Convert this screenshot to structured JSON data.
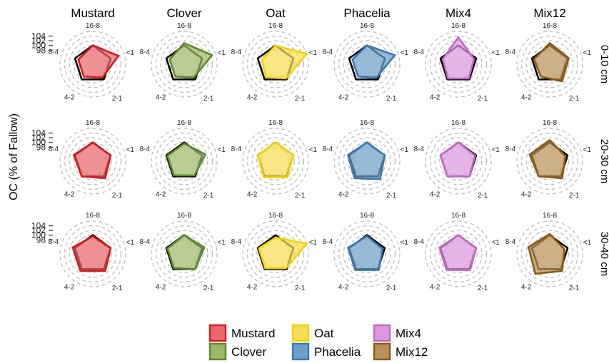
{
  "chart_data": {
    "type": "radar",
    "ylabel": "OC (% of Fallow)",
    "r_ticks": [
      98,
      100,
      102,
      104
    ],
    "r_range": [
      92,
      106
    ],
    "axes": [
      "<1",
      "2-1",
      "4-2",
      "8-4",
      "16-8"
    ],
    "treatments": [
      "Mustard",
      "Clover",
      "Oat",
      "Phacelia",
      "Mix4",
      "Mix12"
    ],
    "depths": [
      "0-10 cm",
      "20-30 cm",
      "30-40 cm"
    ],
    "reference": {
      "name": "Fallow",
      "values": [
        100,
        100,
        100,
        100,
        100
      ],
      "color": "#000000"
    },
    "colors": {
      "Mustard": {
        "fill": "#e8686e",
        "stroke": "#d7191c"
      },
      "Clover": {
        "fill": "#9cb86a",
        "stroke": "#5a8a2a"
      },
      "Oat": {
        "fill": "#f7dc55",
        "stroke": "#f5d300"
      },
      "Phacelia": {
        "fill": "#6f9fc8",
        "stroke": "#3b78b0"
      },
      "Mix4": {
        "fill": "#dc98de",
        "stroke": "#c267c4"
      },
      "Mix12": {
        "fill": "#b8925a",
        "stroke": "#8a5a14"
      }
    },
    "series": [
      {
        "treatment": "Mustard",
        "depth": "0-10 cm",
        "values": [
          103.5,
          99,
          98.5,
          98.5,
          100
        ]
      },
      {
        "treatment": "Clover",
        "depth": "0-10 cm",
        "values": [
          104.5,
          99,
          98.5,
          98.5,
          101
        ]
      },
      {
        "treatment": "Oat",
        "depth": "0-10 cm",
        "values": [
          106,
          99.5,
          99,
          98,
          100
        ]
      },
      {
        "treatment": "Phacelia",
        "depth": "0-10 cm",
        "values": [
          104.5,
          99,
          98.5,
          98.5,
          100
        ]
      },
      {
        "treatment": "Mix4",
        "depth": "0-10 cm",
        "values": [
          99,
          99.5,
          99.5,
          99,
          103.5
        ]
      },
      {
        "treatment": "Mix12",
        "depth": "0-10 cm",
        "values": [
          100.5,
          101,
          98.5,
          99,
          101
        ]
      },
      {
        "treatment": "Mustard",
        "depth": "20-30 cm",
        "values": [
          100,
          101,
          100,
          100.5,
          100
        ]
      },
      {
        "treatment": "Clover",
        "depth": "20-30 cm",
        "values": [
          101.5,
          99.5,
          99.5,
          99.5,
          99.5
        ]
      },
      {
        "treatment": "Oat",
        "depth": "20-30 cm",
        "values": [
          100,
          100.5,
          100.5,
          100,
          100
        ]
      },
      {
        "treatment": "Phacelia",
        "depth": "20-30 cm",
        "values": [
          100,
          101.5,
          101,
          100.5,
          100
        ]
      },
      {
        "treatment": "Mix4",
        "depth": "20-30 cm",
        "values": [
          99.5,
          100,
          100,
          100,
          100
        ]
      },
      {
        "treatment": "Mix12",
        "depth": "20-30 cm",
        "values": [
          99,
          101,
          100,
          101,
          101
        ]
      },
      {
        "treatment": "Mustard",
        "depth": "30-40 cm",
        "values": [
          100,
          101,
          101,
          101,
          99.5
        ]
      },
      {
        "treatment": "Clover",
        "depth": "30-40 cm",
        "values": [
          101,
          100,
          99.5,
          99.5,
          100
        ]
      },
      {
        "treatment": "Oat",
        "depth": "30-40 cm",
        "values": [
          106,
          99.5,
          99.5,
          99.5,
          99
        ]
      },
      {
        "treatment": "Phacelia",
        "depth": "30-40 cm",
        "values": [
          99,
          100.5,
          100.5,
          100.5,
          99.5
        ]
      },
      {
        "treatment": "Mix4",
        "depth": "30-40 cm",
        "values": [
          100,
          100.5,
          100.5,
          100.5,
          100
        ]
      },
      {
        "treatment": "Mix12",
        "depth": "30-40 cm",
        "values": [
          98.5,
          101,
          102.5,
          101.5,
          100.5
        ]
      }
    ],
    "legend": [
      [
        "Mustard",
        "Oat",
        "Mix4"
      ],
      [
        "Clover",
        "Phacelia",
        "Mix12"
      ]
    ]
  }
}
